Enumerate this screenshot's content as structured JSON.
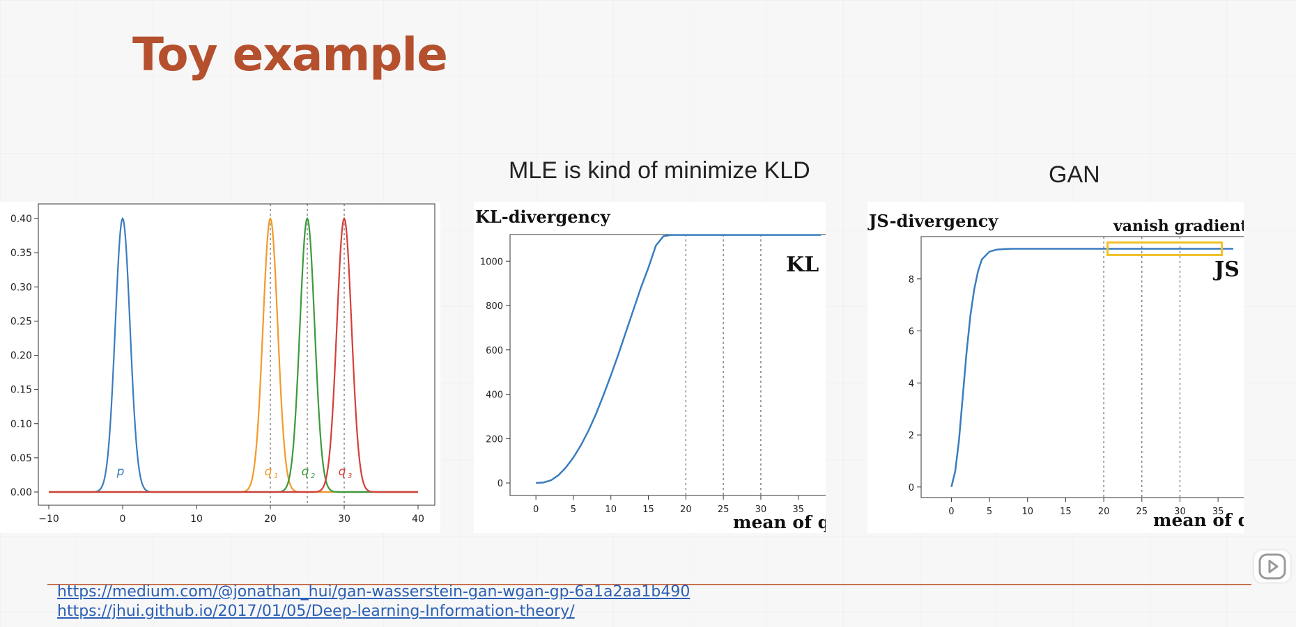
{
  "slide": {
    "title": "Toy example",
    "captions": {
      "mle": "MLE is kind of minimize KLD",
      "gan": "GAN"
    },
    "links": [
      "https://medium.com/@jonathan_hui/gan-wasserstein-gan-wgan-gp-6a1a2aa1b490",
      "https://jhui.github.io/2017/01/05/Deep-learning-Information-theory/"
    ],
    "colors": {
      "title": "#b5502e",
      "divider": "#c8714f",
      "link": "#2b5fb4"
    }
  },
  "player": {
    "play_icon": "play-icon"
  },
  "chart_data": [
    {
      "type": "line",
      "title": "",
      "xlim": [
        -10,
        40
      ],
      "ylim": [
        0,
        0.4
      ],
      "xticks": [
        "−10",
        "0",
        "10",
        "20",
        "30",
        "40"
      ],
      "yticks": [
        "0.00",
        "0.05",
        "0.10",
        "0.15",
        "0.20",
        "0.25",
        "0.30",
        "0.35",
        "0.40"
      ],
      "series": [
        {
          "name": "p",
          "mean": 0,
          "std": 1,
          "peak": 0.4,
          "color": "#3a7dbf"
        },
        {
          "name": "q",
          "sub": "1",
          "mean": 20,
          "std": 1,
          "peak": 0.4,
          "color": "#f39a2a"
        },
        {
          "name": "q",
          "sub": "2",
          "mean": 25,
          "std": 1,
          "peak": 0.4,
          "color": "#3c9a3c"
        },
        {
          "name": "q",
          "sub": "3",
          "mean": 30,
          "std": 1,
          "peak": 0.4,
          "color": "#d43f3a"
        }
      ],
      "vlines": [
        20,
        25,
        30
      ]
    },
    {
      "type": "line",
      "title": "KL-divergency",
      "xlabel": "mean of q",
      "series_label": "KL",
      "xlim": [
        -1.5,
        38
      ],
      "ylim": [
        -50,
        1120
      ],
      "xticks": [
        "0",
        "5",
        "10",
        "15",
        "20",
        "25",
        "30",
        "35"
      ],
      "yticks": [
        "0",
        "200",
        "400",
        "600",
        "800",
        "1000"
      ],
      "x": [
        0,
        1,
        2,
        3,
        4,
        5,
        6,
        7,
        8,
        9,
        10,
        11,
        12,
        13,
        14,
        15,
        16,
        17,
        18,
        20,
        25,
        30,
        35,
        38
      ],
      "y": [
        0,
        2,
        12,
        35,
        70,
        115,
        170,
        235,
        310,
        395,
        485,
        580,
        680,
        780,
        880,
        970,
        1070,
        1112,
        1118,
        1118,
        1118,
        1118,
        1118,
        1118
      ],
      "vlines": [
        20,
        25,
        30
      ],
      "color": "#3a7dbf"
    },
    {
      "type": "line",
      "title": "JS-divergency",
      "xlabel": "mean of q",
      "series_label": "JS",
      "annotation": "vanish gradient",
      "xlim": [
        -1.5,
        37
      ],
      "ylim": [
        -0.3,
        9.6
      ],
      "xticks": [
        "0",
        "5",
        "10",
        "15",
        "20",
        "25",
        "30",
        "35"
      ],
      "yticks": [
        "0",
        "2",
        "4",
        "6",
        "8"
      ],
      "x": [
        0,
        0.5,
        1,
        1.5,
        2,
        2.5,
        3,
        3.5,
        4,
        5,
        6,
        7,
        8,
        10,
        15,
        20,
        25,
        30,
        35,
        37
      ],
      "y": [
        0,
        0.6,
        1.8,
        3.5,
        5.2,
        6.6,
        7.6,
        8.3,
        8.75,
        9.05,
        9.13,
        9.15,
        9.16,
        9.16,
        9.16,
        9.16,
        9.16,
        9.16,
        9.16,
        9.16
      ],
      "vlines": [
        20,
        25,
        30
      ],
      "highlight_x": [
        20.5,
        35.5
      ],
      "color": "#3a7dbf"
    }
  ]
}
